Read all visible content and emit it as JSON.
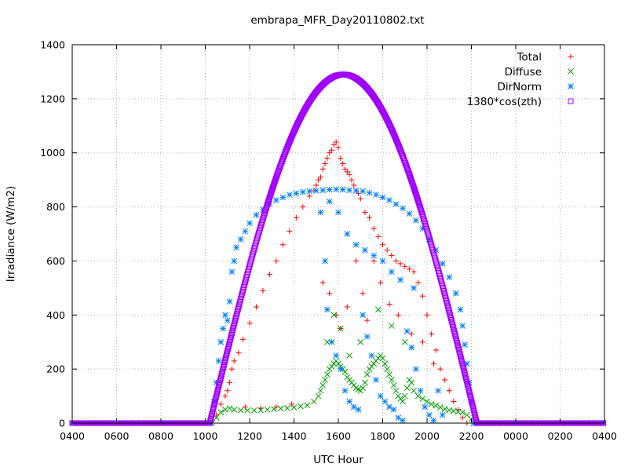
{
  "chart_data": {
    "type": "scatter",
    "title": "embrapa_MFR_Day20110802.txt",
    "xlabel": "UTC Hour",
    "ylabel": "Irradiance (W/m2)",
    "xlim": [
      4,
      28
    ],
    "ylim": [
      0,
      1400
    ],
    "x_ticks": [
      {
        "value": 4,
        "label": "0400"
      },
      {
        "value": 6,
        "label": "0600"
      },
      {
        "value": 8,
        "label": "0800"
      },
      {
        "value": 10,
        "label": "1000"
      },
      {
        "value": 12,
        "label": "1200"
      },
      {
        "value": 14,
        "label": "1400"
      },
      {
        "value": 16,
        "label": "1600"
      },
      {
        "value": 18,
        "label": "1800"
      },
      {
        "value": 20,
        "label": "2000"
      },
      {
        "value": 22,
        "label": "2200"
      },
      {
        "value": 24,
        "label": "0000"
      },
      {
        "value": 26,
        "label": "0200"
      },
      {
        "value": 28,
        "label": "0400"
      }
    ],
    "y_ticks": [
      0,
      200,
      400,
      600,
      800,
      1000,
      1200,
      1400
    ],
    "grid": true,
    "legend_position": "top-right",
    "series": [
      {
        "name": "Total",
        "marker": "plus",
        "color": "#ff0000",
        "points": [
          [
            10.3,
            0
          ],
          [
            10.5,
            30
          ],
          [
            10.7,
            70
          ],
          [
            10.9,
            100
          ],
          [
            11.0,
            120
          ],
          [
            11.1,
            150
          ],
          [
            11.2,
            200
          ],
          [
            11.3,
            230
          ],
          [
            11.5,
            260
          ],
          [
            11.7,
            310
          ],
          [
            12.0,
            370
          ],
          [
            12.3,
            430
          ],
          [
            12.6,
            490
          ],
          [
            12.9,
            550
          ],
          [
            13.2,
            600
          ],
          [
            13.5,
            660
          ],
          [
            13.8,
            710
          ],
          [
            14.1,
            760
          ],
          [
            14.4,
            800
          ],
          [
            14.7,
            840
          ],
          [
            14.9,
            860
          ],
          [
            15.0,
            880
          ],
          [
            15.1,
            900
          ],
          [
            15.2,
            910
          ],
          [
            15.3,
            940
          ],
          [
            15.4,
            960
          ],
          [
            15.5,
            980
          ],
          [
            15.6,
            1000
          ],
          [
            15.7,
            1010
          ],
          [
            15.8,
            1030
          ],
          [
            15.9,
            1040
          ],
          [
            16.0,
            1020
          ],
          [
            16.1,
            980
          ],
          [
            16.2,
            960
          ],
          [
            16.3,
            940
          ],
          [
            16.4,
            930
          ],
          [
            16.5,
            920
          ],
          [
            16.6,
            900
          ],
          [
            16.7,
            880
          ],
          [
            16.8,
            860
          ],
          [
            16.9,
            850
          ],
          [
            17.0,
            830
          ],
          [
            17.2,
            780
          ],
          [
            17.4,
            760
          ],
          [
            17.6,
            720
          ],
          [
            17.8,
            690
          ],
          [
            18.0,
            660
          ],
          [
            18.2,
            640
          ],
          [
            18.4,
            620
          ],
          [
            18.6,
            600
          ],
          [
            18.8,
            590
          ],
          [
            19.0,
            580
          ],
          [
            19.2,
            570
          ],
          [
            19.4,
            560
          ],
          [
            19.6,
            520
          ],
          [
            19.8,
            470
          ],
          [
            20.0,
            400
          ],
          [
            20.2,
            330
          ],
          [
            20.4,
            270
          ],
          [
            20.6,
            200
          ],
          [
            20.8,
            160
          ],
          [
            21.0,
            120
          ],
          [
            21.2,
            80
          ],
          [
            21.4,
            50
          ],
          [
            21.6,
            20
          ],
          [
            21.8,
            0
          ],
          [
            15.3,
            520
          ],
          [
            15.6,
            480
          ],
          [
            15.9,
            400
          ],
          [
            16.1,
            350
          ],
          [
            16.4,
            430
          ],
          [
            16.8,
            600
          ],
          [
            17.1,
            480
          ],
          [
            17.3,
            380
          ],
          [
            17.6,
            600
          ],
          [
            17.9,
            520
          ],
          [
            18.3,
            440
          ],
          [
            18.7,
            400
          ],
          [
            19.3,
            330
          ],
          [
            19.8,
            300
          ],
          [
            20.3,
            220
          ],
          [
            11.8,
            60
          ],
          [
            12.5,
            55
          ],
          [
            13.2,
            60
          ],
          [
            13.9,
            70
          ]
        ]
      },
      {
        "name": "Diffuse",
        "marker": "cross",
        "color": "#00a000",
        "points": [
          [
            10.3,
            0
          ],
          [
            10.5,
            20
          ],
          [
            10.7,
            40
          ],
          [
            10.9,
            50
          ],
          [
            11.1,
            55
          ],
          [
            11.3,
            50
          ],
          [
            11.6,
            48
          ],
          [
            11.9,
            47
          ],
          [
            12.2,
            47
          ],
          [
            12.5,
            48
          ],
          [
            12.8,
            50
          ],
          [
            13.1,
            52
          ],
          [
            13.4,
            54
          ],
          [
            13.7,
            56
          ],
          [
            14.0,
            58
          ],
          [
            14.3,
            62
          ],
          [
            14.6,
            66
          ],
          [
            14.9,
            80
          ],
          [
            15.1,
            100
          ],
          [
            15.2,
            120
          ],
          [
            15.3,
            140
          ],
          [
            15.4,
            160
          ],
          [
            15.5,
            180
          ],
          [
            15.6,
            200
          ],
          [
            15.7,
            210
          ],
          [
            15.8,
            220
          ],
          [
            15.9,
            230
          ],
          [
            16.0,
            220
          ],
          [
            16.1,
            210
          ],
          [
            16.2,
            200
          ],
          [
            16.3,
            190
          ],
          [
            16.4,
            170
          ],
          [
            16.5,
            160
          ],
          [
            16.6,
            150
          ],
          [
            16.7,
            140
          ],
          [
            16.8,
            130
          ],
          [
            16.9,
            125
          ],
          [
            17.0,
            120
          ],
          [
            17.1,
            130
          ],
          [
            17.2,
            150
          ],
          [
            17.3,
            180
          ],
          [
            17.4,
            200
          ],
          [
            17.5,
            210
          ],
          [
            17.6,
            220
          ],
          [
            17.7,
            230
          ],
          [
            17.8,
            240
          ],
          [
            17.9,
            250
          ],
          [
            18.0,
            240
          ],
          [
            18.1,
            220
          ],
          [
            18.2,
            200
          ],
          [
            18.3,
            180
          ],
          [
            18.4,
            160
          ],
          [
            18.5,
            140
          ],
          [
            18.6,
            120
          ],
          [
            18.7,
            100
          ],
          [
            18.8,
            90
          ],
          [
            18.9,
            80
          ],
          [
            19.0,
            100
          ],
          [
            19.1,
            130
          ],
          [
            19.2,
            160
          ],
          [
            19.3,
            150
          ],
          [
            19.4,
            120
          ],
          [
            19.6,
            100
          ],
          [
            19.8,
            90
          ],
          [
            20.0,
            80
          ],
          [
            20.2,
            70
          ],
          [
            20.4,
            65
          ],
          [
            20.6,
            58
          ],
          [
            20.8,
            52
          ],
          [
            21.0,
            48
          ],
          [
            21.2,
            45
          ],
          [
            21.4,
            42
          ],
          [
            21.6,
            40
          ],
          [
            21.8,
            30
          ],
          [
            22.0,
            15
          ],
          [
            22.1,
            0
          ],
          [
            15.5,
            300
          ],
          [
            15.8,
            400
          ],
          [
            16.1,
            350
          ],
          [
            16.5,
            250
          ],
          [
            17.0,
            300
          ],
          [
            17.8,
            420
          ],
          [
            18.4,
            360
          ],
          [
            19.0,
            300
          ]
        ]
      },
      {
        "name": "DirNorm",
        "marker": "star",
        "color": "#0080ff",
        "points": [
          [
            10.3,
            0
          ],
          [
            10.4,
            80
          ],
          [
            10.5,
            150
          ],
          [
            10.6,
            230
          ],
          [
            10.7,
            300
          ],
          [
            10.8,
            350
          ],
          [
            10.9,
            400
          ],
          [
            11.0,
            380
          ],
          [
            11.1,
            450
          ],
          [
            11.2,
            560
          ],
          [
            11.3,
            600
          ],
          [
            11.4,
            650
          ],
          [
            11.6,
            680
          ],
          [
            11.8,
            710
          ],
          [
            12.0,
            740
          ],
          [
            12.3,
            770
          ],
          [
            12.6,
            790
          ],
          [
            12.9,
            810
          ],
          [
            13.2,
            825
          ],
          [
            13.5,
            835
          ],
          [
            13.8,
            845
          ],
          [
            14.1,
            850
          ],
          [
            14.4,
            855
          ],
          [
            14.7,
            858
          ],
          [
            15.0,
            860
          ],
          [
            15.3,
            862
          ],
          [
            15.6,
            864
          ],
          [
            15.9,
            865
          ],
          [
            16.2,
            864
          ],
          [
            16.5,
            862
          ],
          [
            16.8,
            860
          ],
          [
            17.1,
            858
          ],
          [
            17.4,
            852
          ],
          [
            17.7,
            845
          ],
          [
            18.0,
            835
          ],
          [
            18.3,
            825
          ],
          [
            18.6,
            810
          ],
          [
            18.9,
            795
          ],
          [
            19.2,
            775
          ],
          [
            19.5,
            750
          ],
          [
            19.8,
            720
          ],
          [
            20.1,
            680
          ],
          [
            20.4,
            640
          ],
          [
            20.7,
            590
          ],
          [
            21.0,
            540
          ],
          [
            21.3,
            480
          ],
          [
            21.5,
            420
          ],
          [
            21.6,
            360
          ],
          [
            21.7,
            290
          ],
          [
            21.8,
            220
          ],
          [
            21.9,
            150
          ],
          [
            22.0,
            80
          ],
          [
            22.1,
            0
          ],
          [
            15.2,
            780
          ],
          [
            15.4,
            600
          ],
          [
            15.5,
            420
          ],
          [
            15.7,
            300
          ],
          [
            15.9,
            250
          ],
          [
            16.1,
            200
          ],
          [
            16.3,
            120
          ],
          [
            16.5,
            80
          ],
          [
            16.7,
            60
          ],
          [
            16.9,
            50
          ],
          [
            17.1,
            400
          ],
          [
            17.3,
            320
          ],
          [
            17.5,
            250
          ],
          [
            17.7,
            160
          ],
          [
            17.9,
            100
          ],
          [
            18.1,
            80
          ],
          [
            18.3,
            60
          ],
          [
            18.5,
            50
          ],
          [
            18.7,
            20
          ],
          [
            18.9,
            10
          ],
          [
            19.1,
            340
          ],
          [
            19.3,
            280
          ],
          [
            19.5,
            200
          ],
          [
            19.7,
            120
          ],
          [
            19.9,
            60
          ],
          [
            20.1,
            30
          ],
          [
            20.3,
            10
          ],
          [
            20.5,
            120
          ],
          [
            20.7,
            30
          ],
          [
            15.6,
            820
          ],
          [
            16.0,
            780
          ],
          [
            16.4,
            700
          ],
          [
            16.8,
            660
          ],
          [
            17.2,
            640
          ],
          [
            17.6,
            620
          ],
          [
            18.0,
            600
          ],
          [
            18.4,
            560
          ],
          [
            18.8,
            530
          ],
          [
            19.4,
            500
          ]
        ]
      },
      {
        "name": "1380*cos(zth)",
        "marker": "square",
        "color": "#a000ff",
        "curve": {
          "sunrise": 10.2,
          "sunset": 22.25,
          "peak_x": 16.1,
          "peak_y": 1290
        }
      }
    ]
  }
}
